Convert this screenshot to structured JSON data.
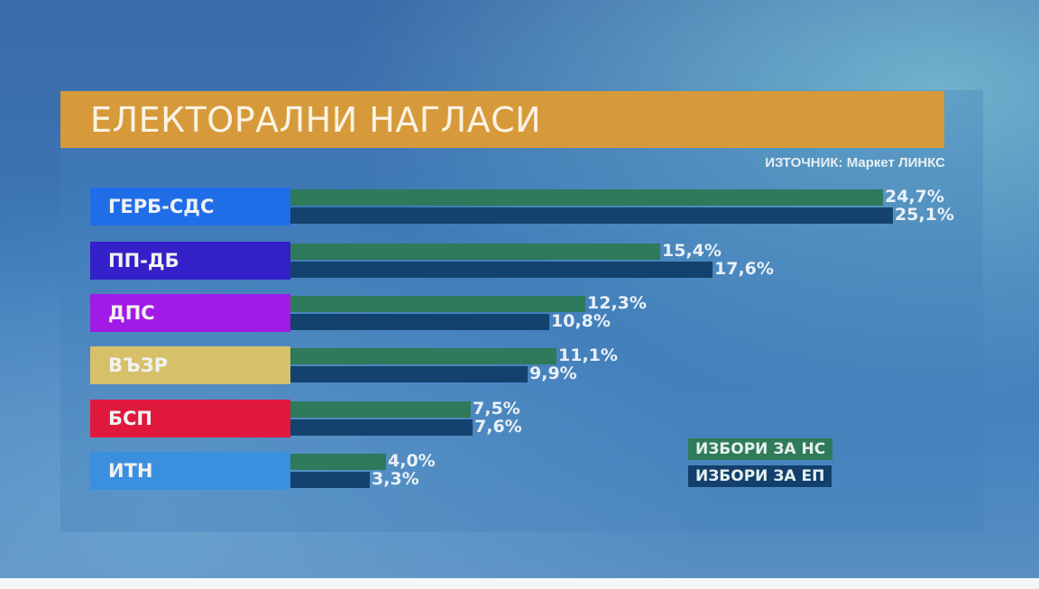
{
  "title": "ЕЛЕКТОРАЛНИ НАГЛАСИ",
  "source": "ИЗТОЧНИК: Маркет ЛИНКС",
  "legend": {
    "ns": "ИЗБОРИ ЗА НС",
    "ep": "ИЗБОРИ ЗА ЕП"
  },
  "colors": {
    "title_bar": "#d79a3a",
    "series_ns": "#2e7a5a",
    "series_ep": "#13426e"
  },
  "rows": [
    {
      "party": "ГЕРБ-СДС",
      "color": "#1f6ee8",
      "ns": "24,7%",
      "ep": "25,1%"
    },
    {
      "party": "ПП-ДБ",
      "color": "#3320c8",
      "ns": "15,4%",
      "ep": "17,6%"
    },
    {
      "party": "ДПС",
      "color": "#a21ae6",
      "ns": "12,3%",
      "ep": "10,8%"
    },
    {
      "party": "ВЪЗР",
      "color": "#d7c06a",
      "ns": "11,1%",
      "ep": "9,9%"
    },
    {
      "party": "БСП",
      "color": "#e0183e",
      "ns": "7,5%",
      "ep": "7,6%"
    },
    {
      "party": "ИТН",
      "color": "#3a8fde",
      "ns": "4,0%",
      "ep": "3,3%"
    }
  ],
  "chart_data": {
    "type": "bar",
    "orientation": "horizontal",
    "title": "ЕЛЕКТОРАЛНИ НАГЛАСИ",
    "subtitle": "ИЗТОЧНИК: Маркет ЛИНКС",
    "categories": [
      "ГЕРБ-СДС",
      "ПП-ДБ",
      "ДПС",
      "ВЪЗР",
      "БСП",
      "ИТН"
    ],
    "series": [
      {
        "name": "ИЗБОРИ ЗА НС",
        "color": "#2e7a5a",
        "values": [
          24.7,
          15.4,
          12.3,
          11.1,
          7.5,
          4.0
        ]
      },
      {
        "name": "ИЗБОРИ ЗА ЕП",
        "color": "#13426e",
        "values": [
          25.1,
          17.6,
          10.8,
          9.9,
          7.6,
          3.3
        ]
      }
    ],
    "xlabel": "",
    "ylabel": "",
    "unit": "%",
    "grid": false,
    "legend_position": "bottom-right",
    "xlim": [
      0,
      28
    ]
  }
}
